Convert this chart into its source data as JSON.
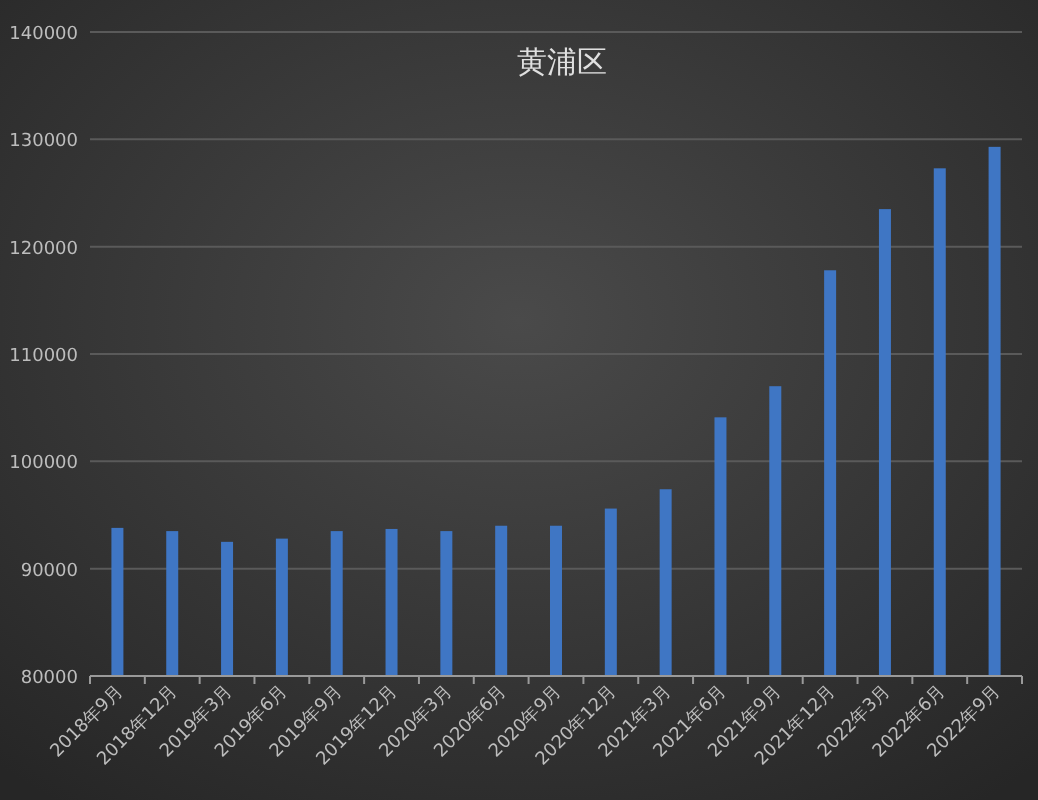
{
  "chart_data": {
    "type": "bar",
    "title": "黄浦区",
    "categories": [
      "2018年9月",
      "2018年12月",
      "2019年3月",
      "2019年6月",
      "2019年9月",
      "2019年12月",
      "2020年3月",
      "2020年6月",
      "2020年9月",
      "2020年12月",
      "2021年3月",
      "2021年6月",
      "2021年9月",
      "2021年12月",
      "2022年3月",
      "2022年6月",
      "2022年9月"
    ],
    "values": [
      93800,
      93500,
      92500,
      92800,
      93500,
      93700,
      93500,
      94000,
      94000,
      95600,
      97400,
      104100,
      107000,
      117800,
      123500,
      127300,
      129300
    ],
    "color": "#3f76c4",
    "ylim": [
      80000,
      140000
    ],
    "yticks": [
      80000,
      90000,
      100000,
      110000,
      120000,
      130000,
      140000
    ],
    "grid": "y"
  }
}
